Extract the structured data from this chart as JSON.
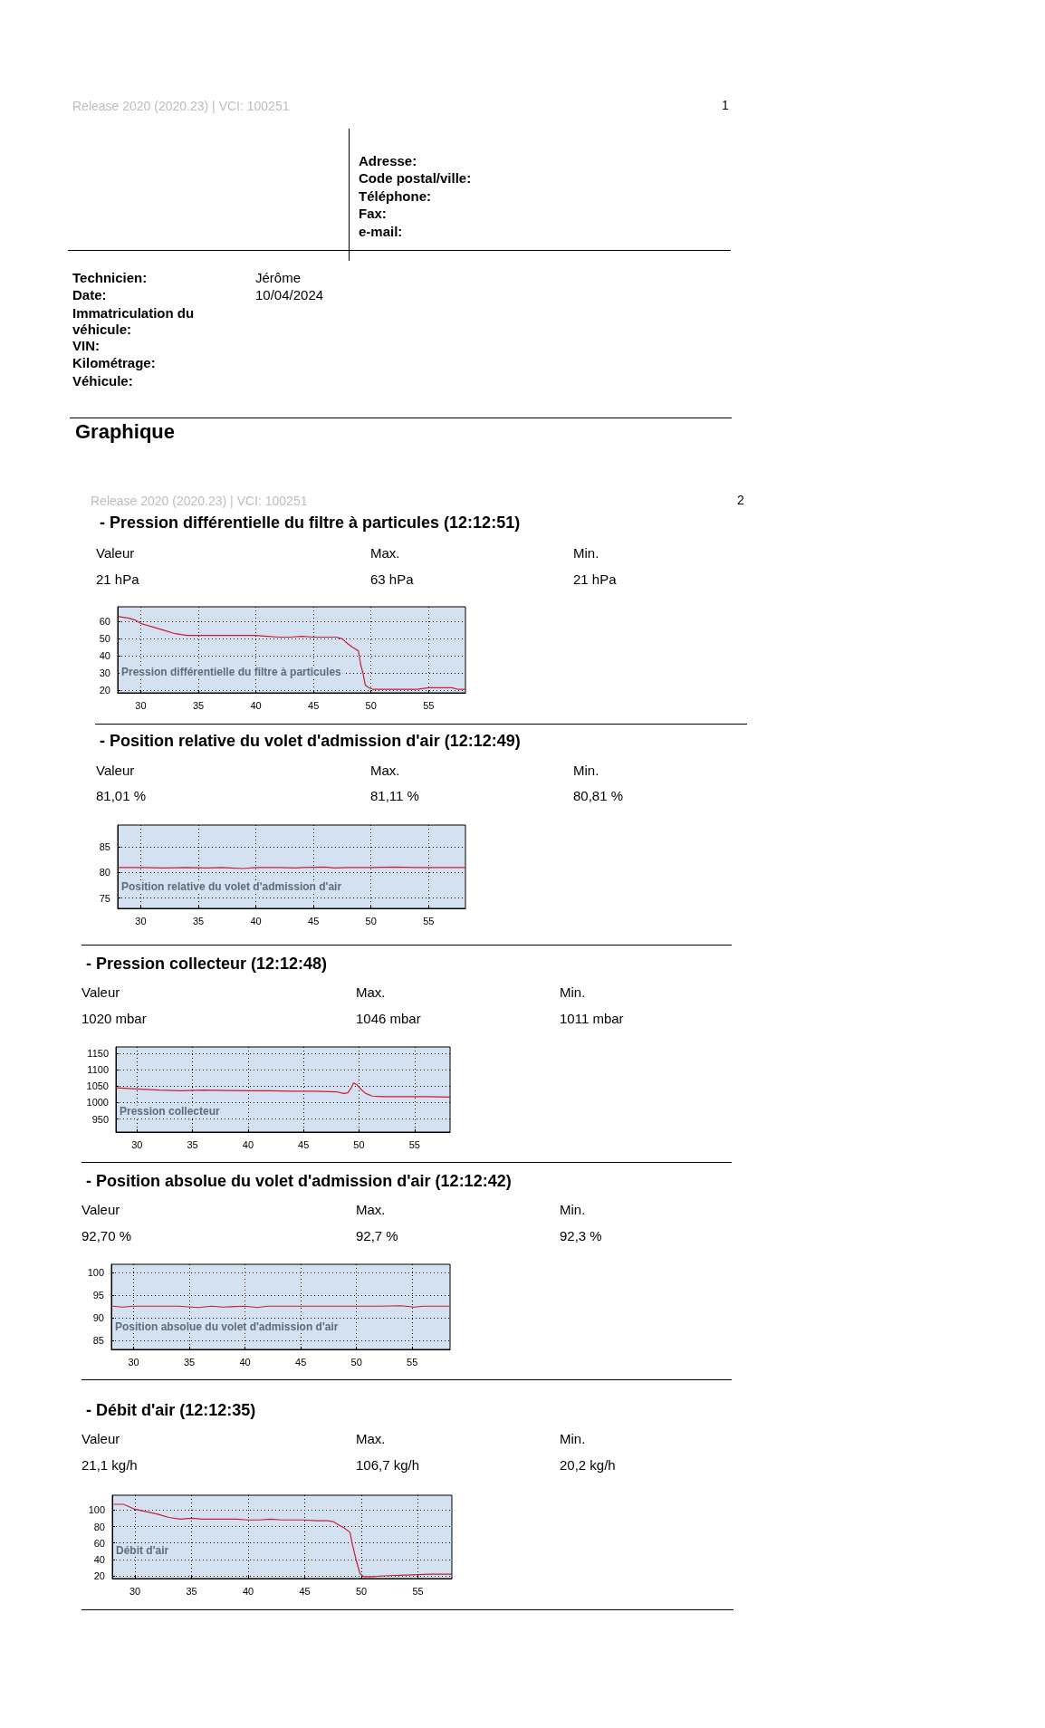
{
  "chart_data": [
    {
      "type": "other",
      "title": "Graphique",
      "annotations": [
        "Release 2020 (2020.23)  |  VCI: 100251",
        "1",
        "Adresse:",
        "Code postal/ville:",
        "Téléphone:",
        "Fax:",
        "e-mail:",
        "Technicien:",
        "Jérôme",
        "Date:",
        "10/04/2024",
        "Immatriculation du véhicule:",
        "VIN:",
        "Kilométrage:",
        "Véhicule:",
        "Release 2020 (2020.23)  |  VCI: 100251",
        "2"
      ]
    },
    {
      "type": "line",
      "title": "-  Pression différentielle du filtre à particules (12:12:51)",
      "annotations": [
        "Valeur",
        "21 hPa",
        "Max.",
        "63 hPa",
        "Min.",
        "21 hPa",
        "Pression différentielle du filtre à particules"
      ],
      "xlim": [
        28,
        58.2
      ],
      "ylim": [
        18.5,
        68.7
      ],
      "xticks": [
        30,
        35,
        40,
        45,
        50,
        55
      ],
      "yticks": [
        20,
        30,
        40,
        50,
        60
      ],
      "grid": true,
      "marker": "none",
      "line_style": "solid",
      "x": [
        28.1,
        29,
        29.5,
        30,
        30.5,
        31,
        32,
        33,
        34,
        35,
        36,
        37,
        38,
        39,
        40,
        41,
        42,
        43,
        44,
        45,
        46,
        47,
        47.5,
        48,
        48.4,
        48.9,
        49.1,
        49.3,
        49.5,
        49.8,
        50.2,
        51,
        52,
        53,
        54,
        55,
        56,
        57,
        57.6,
        58.2
      ],
      "series": [
        {
          "color": "#cc1f2e",
          "values": [
            63,
            62,
            61,
            59,
            58,
            57,
            55,
            53,
            52,
            52,
            52,
            52,
            52,
            52,
            52,
            51.5,
            51,
            51,
            51.5,
            51,
            51,
            51,
            50,
            47,
            45,
            43,
            35,
            30,
            23,
            21.5,
            20.5,
            20.5,
            20.5,
            20.5,
            20.5,
            21.5,
            21.5,
            21.5,
            20.5,
            20.5
          ]
        }
      ]
    },
    {
      "type": "line",
      "title": "-  Position relative du volet d'admission d'air (12:12:49)",
      "annotations": [
        "Valeur",
        "81,01 %",
        "Max.",
        "81,11 %",
        "Min.",
        "80,81 %",
        "Position relative du volet d'admission d'air"
      ],
      "xlim": [
        28,
        58.2
      ],
      "ylim": [
        73,
        89.3
      ],
      "xticks": [
        30,
        35,
        40,
        45,
        50,
        55
      ],
      "yticks": [
        75,
        80,
        85
      ],
      "grid": true,
      "marker": "none",
      "line_style": "solid",
      "x": [
        28.1,
        30,
        32,
        34,
        35.8,
        37,
        38.9,
        40,
        42,
        43.5,
        44,
        46,
        46.8,
        48,
        50,
        52,
        54,
        56,
        58.2
      ],
      "series": [
        {
          "color": "#cc1f2e",
          "values": [
            81,
            81,
            80.9,
            81,
            80.9,
            81,
            80.8,
            81,
            81,
            80.9,
            81,
            81.1,
            80.9,
            81,
            81,
            81.1,
            81,
            81,
            81
          ]
        }
      ]
    },
    {
      "type": "line",
      "title": "-  Pression collecteur (12:12:48)",
      "annotations": [
        "Valeur",
        "1020 mbar",
        "Max.",
        "1046 mbar",
        "Min.",
        "1011 mbar",
        "Pression collecteur"
      ],
      "xlim": [
        28.1,
        58.2
      ],
      "ylim": [
        910,
        1170
      ],
      "xticks": [
        30,
        35,
        40,
        45,
        50,
        55
      ],
      "yticks": [
        950,
        1000,
        1050,
        1100,
        1150
      ],
      "grid": true,
      "marker": "none",
      "line_style": "solid",
      "x": [
        28.1,
        30,
        32,
        34,
        36,
        38,
        40,
        42,
        44,
        46,
        48,
        48.6,
        49,
        49.3,
        49.5,
        49.8,
        50.2,
        50.6,
        51.2,
        52,
        54,
        56,
        58.2
      ],
      "series": [
        {
          "color": "#cc1f2e",
          "values": [
            1045,
            1042,
            1038,
            1036,
            1038,
            1037,
            1036,
            1036,
            1035,
            1035,
            1033,
            1028,
            1030,
            1045,
            1060,
            1055,
            1040,
            1028,
            1020,
            1018,
            1018,
            1018,
            1017
          ]
        }
      ]
    },
    {
      "type": "line",
      "title": "-  Position absolue du volet d'admission d'air (12:12:42)",
      "annotations": [
        "Valeur",
        "92,70 %",
        "Max.",
        "92,7 %",
        "Min.",
        "92,3 %",
        "Position absolue du volet d'admission d'air"
      ],
      "xlim": [
        28,
        58.4
      ],
      "ylim": [
        83.1,
        101.8
      ],
      "xticks": [
        30,
        35,
        40,
        45,
        50,
        55
      ],
      "yticks": [
        85,
        90,
        95,
        100
      ],
      "grid": true,
      "marker": "none",
      "line_style": "solid",
      "x": [
        28.1,
        29,
        30,
        32,
        34,
        35.8,
        37,
        38,
        40,
        41.1,
        42,
        44,
        46,
        48,
        50,
        52,
        54,
        55.2,
        56,
        58.3
      ],
      "series": [
        {
          "color": "#cc1f2e",
          "values": [
            92.6,
            92.4,
            92.6,
            92.6,
            92.6,
            92.3,
            92.6,
            92.4,
            92.6,
            92.3,
            92.6,
            92.6,
            92.6,
            92.6,
            92.6,
            92.6,
            92.7,
            92.4,
            92.6,
            92.6
          ]
        }
      ]
    },
    {
      "type": "line",
      "title": "-  Débit d'air (12:12:35)",
      "annotations": [
        "Valeur",
        "21,1 kg/h",
        "Max.",
        "106,7 kg/h",
        "Min.",
        "20,2 kg/h",
        "Débit d'air"
      ],
      "xlim": [
        28,
        58
      ],
      "ylim": [
        16.7,
        118
      ],
      "xticks": [
        30,
        35,
        40,
        45,
        50,
        55
      ],
      "yticks": [
        20,
        40,
        60,
        80,
        100
      ],
      "grid": true,
      "marker": "none",
      "line_style": "solid",
      "x": [
        28.1,
        29,
        30,
        31,
        32,
        33,
        34,
        35,
        36,
        37,
        38,
        39,
        40,
        41,
        42,
        43,
        44,
        45,
        46,
        47,
        47.5,
        48,
        48.5,
        49,
        49.2,
        49.55,
        49.87,
        50.2,
        51,
        52,
        54,
        56,
        58
      ],
      "series": [
        {
          "color": "#cc1f2e",
          "values": [
            107,
            107,
            101,
            98,
            95,
            91,
            89,
            90,
            89,
            89,
            89,
            89,
            88,
            88,
            89,
            88,
            88,
            88,
            87,
            87,
            86,
            82,
            78,
            73,
            59,
            39,
            23,
            19,
            19,
            20,
            21,
            22,
            22
          ]
        }
      ]
    }
  ]
}
